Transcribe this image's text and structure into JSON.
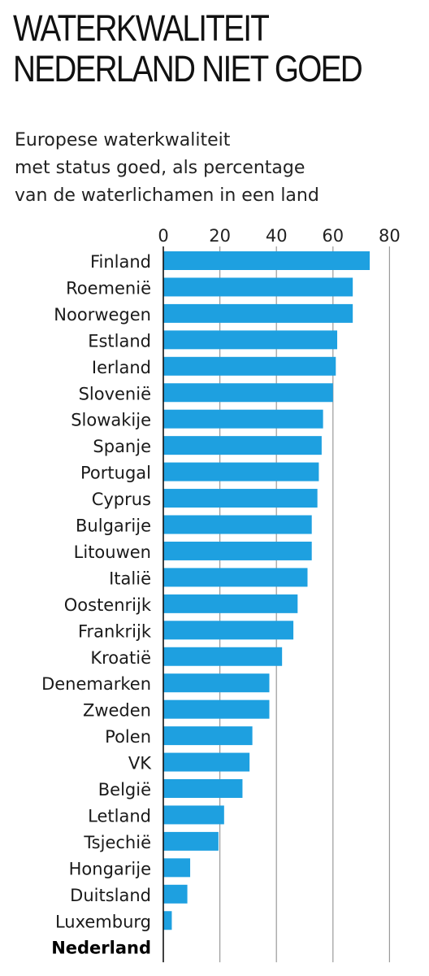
{
  "chart_data": {
    "type": "bar",
    "orientation": "horizontal",
    "title_lines": [
      "WATERKWALITEIT",
      "NEDERLAND NIET GOED"
    ],
    "subtitle_lines": [
      "Europese waterkwaliteit",
      "met status goed, als percentage",
      "van de waterlichamen in een land"
    ],
    "xlim": [
      0,
      80
    ],
    "xticks": [
      0,
      20,
      40,
      60,
      80
    ],
    "grid": true,
    "bar_color": "#1ea0e0",
    "highlight_category": "Nederland",
    "categories": [
      "Finland",
      "Roemenië",
      "Noorwegen",
      "Estland",
      "Ierland",
      "Slovenië",
      "Slowakije",
      "Spanje",
      "Portugal",
      "Cyprus",
      "Bulgarije",
      "Litouwen",
      "Italië",
      "Oostenrijk",
      "Frankrijk",
      "Kroatië",
      "Denemarken",
      "Zweden",
      "Polen",
      "VK",
      "België",
      "Letland",
      "Tsjechië",
      "Hongarije",
      "Duitsland",
      "Luxemburg",
      "Nederland"
    ],
    "values": [
      73,
      67,
      67,
      61.5,
      61,
      60,
      56.5,
      56,
      55,
      54.5,
      52.5,
      52.5,
      51,
      47.5,
      46,
      42,
      37.5,
      37.5,
      31.5,
      30.5,
      28,
      21.5,
      19.5,
      9.5,
      8.5,
      3,
      0
    ]
  }
}
